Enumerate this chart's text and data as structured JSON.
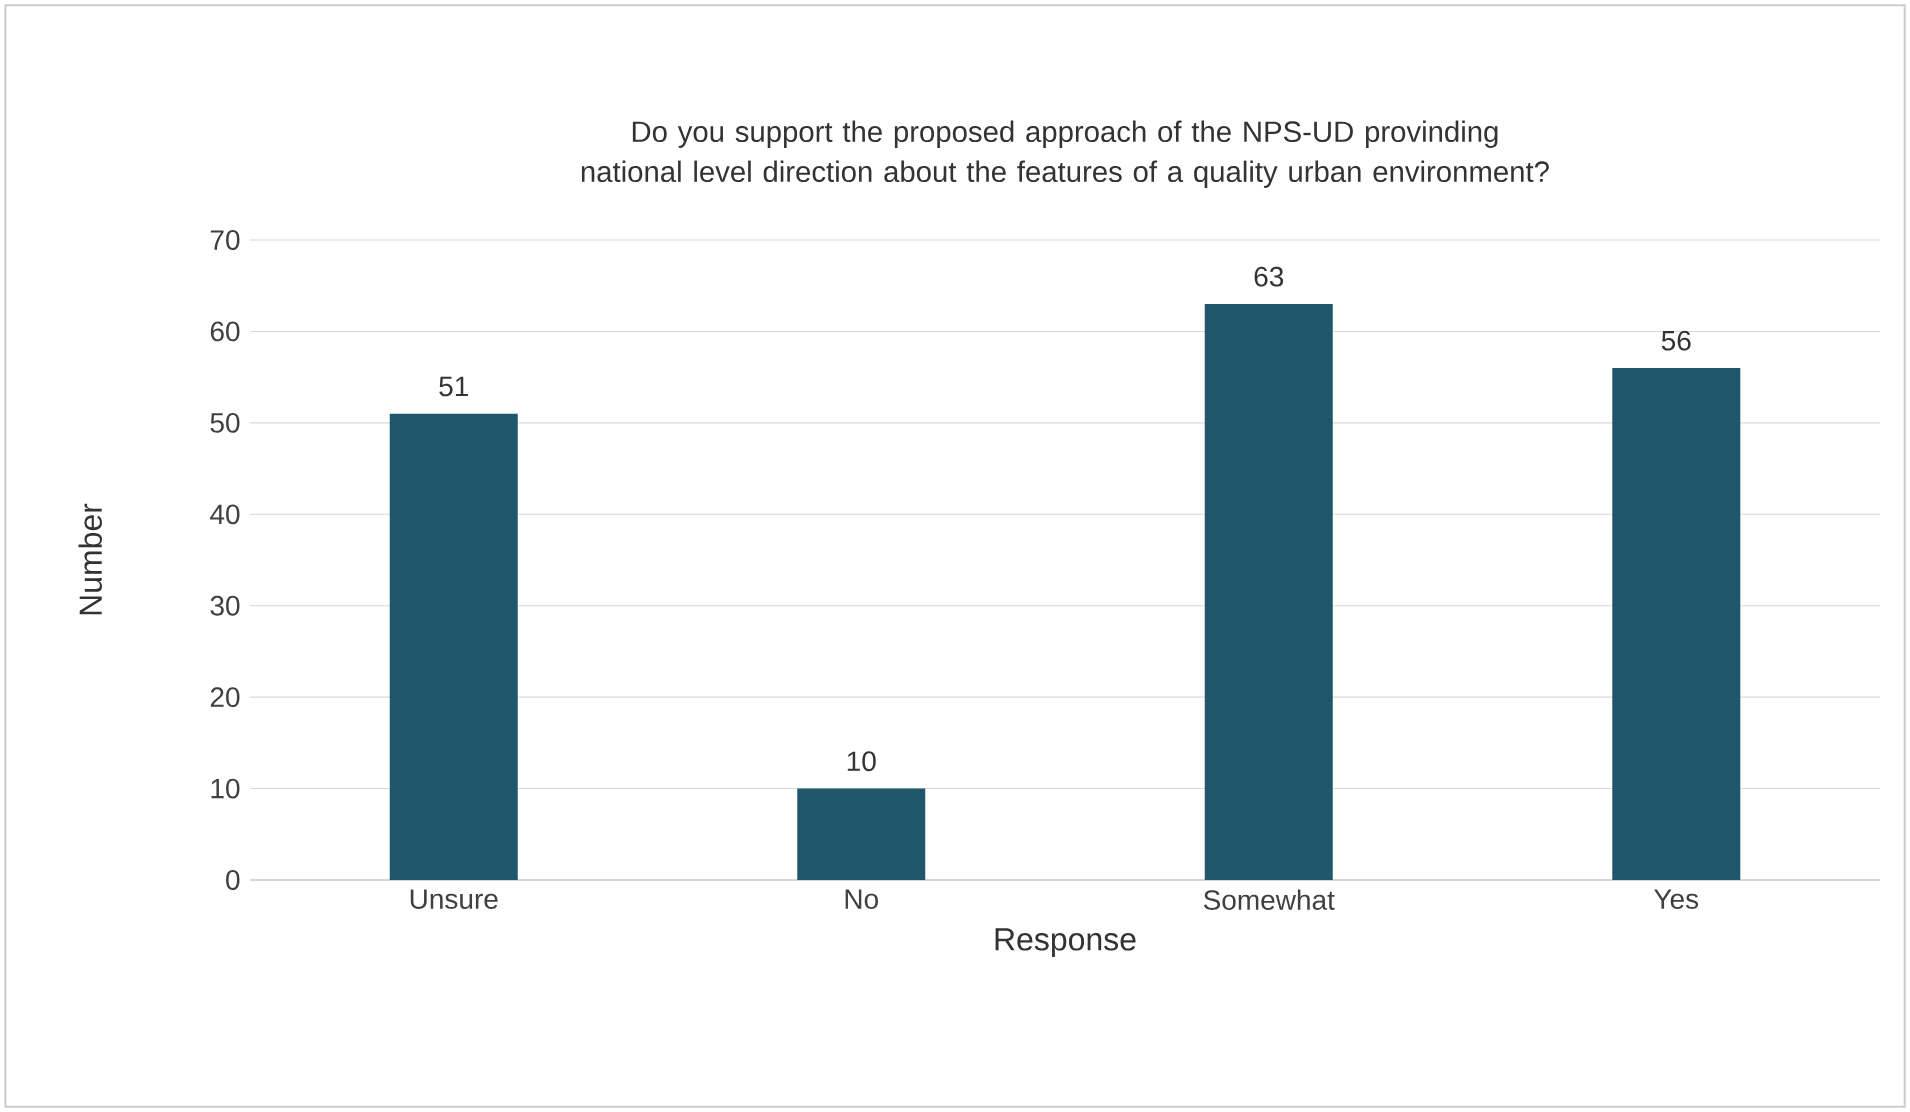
{
  "chart_data": {
    "type": "bar",
    "title": "Do you support the proposed approach of the NPS-UD provinding national level direction about the features of a quality urban environment?",
    "xlabel": "Response",
    "ylabel": "Number",
    "categories": [
      "Unsure",
      "No",
      "Somewhat",
      "Yes"
    ],
    "values": [
      51,
      10,
      63,
      56
    ],
    "color": "#1f566b",
    "ylim": [
      0,
      70
    ],
    "yticks": [
      0,
      10,
      20,
      30,
      40,
      50,
      60,
      70
    ],
    "grid": "y",
    "data_labels": true
  }
}
